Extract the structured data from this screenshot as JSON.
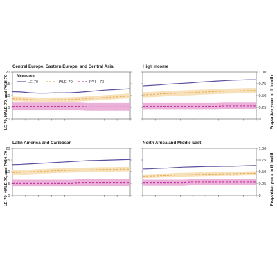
{
  "colors": {
    "le": "#5a4f9e",
    "hale_line": "#e3a84e",
    "hale_band": "#f6dcae",
    "pyih_line": "#b5178e",
    "pyih_band": "#e8a3d2",
    "axis": "#555555"
  },
  "figure": {
    "left_axis_title": "LE-70, HALE-70, and PYIH-70",
    "right_axis_title": "Proportion years in ill health",
    "legend_title": "Measures",
    "legend": [
      {
        "key": "le",
        "label": "LE-70"
      },
      {
        "key": "hale",
        "label": "HALE-70"
      },
      {
        "key": "pyih",
        "label": "PYIH-70"
      }
    ]
  },
  "chart_data": [
    {
      "type": "line",
      "title": "Central Europe, Eastern Europe, and Central Asia",
      "ylim": [
        0,
        20
      ],
      "y_ticks": [
        "0",
        "5",
        "10",
        "15",
        "20"
      ],
      "y2lim": [
        0,
        1
      ],
      "y2_ticks": [
        "0",
        "0.25",
        "0.50",
        "0.75",
        "1.00"
      ],
      "show_left_ticks": true,
      "show_right_ticks": false,
      "x": [
        0,
        1,
        2,
        3,
        4,
        5,
        6,
        7,
        8,
        9,
        10,
        11,
        12,
        13,
        14
      ],
      "series": [
        {
          "name": "LE-70",
          "key": "le",
          "axis": "left",
          "values": [
            11.6,
            11.5,
            11.2,
            11.0,
            11.0,
            11.1,
            11.1,
            11.2,
            11.4,
            11.7,
            12.0,
            12.3,
            12.5,
            12.7,
            12.9
          ]
        },
        {
          "name": "HALE-70",
          "key": "hale",
          "axis": "left",
          "values": [
            8.6,
            8.5,
            8.3,
            8.1,
            8.1,
            8.2,
            8.2,
            8.3,
            8.5,
            8.7,
            8.9,
            9.2,
            9.4,
            9.6,
            9.8
          ],
          "band": 1.0
        },
        {
          "name": "PYIH-70",
          "key": "pyih",
          "axis": "right",
          "values": [
            0.27,
            0.27,
            0.27,
            0.27,
            0.27,
            0.27,
            0.27,
            0.27,
            0.27,
            0.26,
            0.26,
            0.26,
            0.26,
            0.26,
            0.26
          ],
          "band": 0.08
        }
      ]
    },
    {
      "type": "line",
      "title": "High income",
      "ylim": [
        0,
        20
      ],
      "y_ticks": [
        "0",
        "5",
        "10",
        "15",
        "20"
      ],
      "y2lim": [
        0,
        1
      ],
      "y2_ticks": [
        "0",
        "0.25",
        "0.50",
        "0.75",
        "1.00"
      ],
      "show_left_ticks": false,
      "show_right_ticks": true,
      "x": [
        0,
        1,
        2,
        3,
        4,
        5,
        6,
        7,
        8,
        9,
        10,
        11,
        12,
        13,
        14
      ],
      "series": [
        {
          "name": "LE-70",
          "key": "le",
          "axis": "left",
          "values": [
            14.1,
            14.3,
            14.5,
            14.8,
            15.0,
            15.2,
            15.4,
            15.7,
            15.9,
            16.1,
            16.3,
            16.5,
            16.6,
            16.7,
            16.7
          ]
        },
        {
          "name": "HALE-70",
          "key": "hale",
          "axis": "left",
          "values": [
            10.3,
            10.4,
            10.6,
            10.8,
            10.9,
            11.1,
            11.2,
            11.4,
            11.5,
            11.7,
            11.8,
            11.9,
            12.0,
            12.1,
            12.1
          ],
          "band": 1.1
        },
        {
          "name": "PYIH-70",
          "key": "pyih",
          "axis": "right",
          "values": [
            0.27,
            0.27,
            0.27,
            0.27,
            0.27,
            0.27,
            0.27,
            0.27,
            0.27,
            0.27,
            0.28,
            0.28,
            0.28,
            0.28,
            0.28
          ],
          "band": 0.07
        }
      ]
    },
    {
      "type": "line",
      "title": "Latin America and Caribbean",
      "ylim": [
        0,
        20
      ],
      "y_ticks": [
        "0",
        "5",
        "10",
        "15",
        "20"
      ],
      "y2lim": [
        0,
        1
      ],
      "y2_ticks": [
        "0",
        "0.25",
        "0.50",
        "0.75",
        "1.00"
      ],
      "show_left_ticks": true,
      "show_right_ticks": false,
      "x": [
        0,
        1,
        2,
        3,
        4,
        5,
        6,
        7,
        8,
        9,
        10,
        11,
        12,
        13,
        14
      ],
      "series": [
        {
          "name": "LE-70",
          "key": "le",
          "axis": "left",
          "values": [
            13.0,
            13.1,
            13.3,
            13.5,
            13.7,
            13.9,
            14.1,
            14.3,
            14.5,
            14.7,
            14.8,
            14.9,
            15.0,
            15.1,
            15.2
          ]
        },
        {
          "name": "HALE-70",
          "key": "hale",
          "axis": "left",
          "values": [
            9.6,
            9.7,
            9.9,
            10.1,
            10.2,
            10.4,
            10.5,
            10.6,
            10.7,
            10.8,
            10.9,
            11.0,
            11.0,
            11.1,
            11.1
          ],
          "band": 1.0
        },
        {
          "name": "PYIH-70",
          "key": "pyih",
          "axis": "right",
          "values": [
            0.26,
            0.26,
            0.26,
            0.26,
            0.26,
            0.26,
            0.26,
            0.26,
            0.27,
            0.27,
            0.27,
            0.27,
            0.27,
            0.27,
            0.27
          ],
          "band": 0.07
        }
      ]
    },
    {
      "type": "line",
      "title": "North Africa and Middle East",
      "ylim": [
        0,
        20
      ],
      "y_ticks": [
        "0",
        "5",
        "10",
        "15",
        "20"
      ],
      "y2lim": [
        0,
        1
      ],
      "y2_ticks": [
        "0",
        "0.25",
        "0.50",
        "0.75",
        "1.00"
      ],
      "show_left_ticks": false,
      "show_right_ticks": true,
      "x": [
        0,
        1,
        2,
        3,
        4,
        5,
        6,
        7,
        8,
        9,
        10,
        11,
        12,
        13,
        14
      ],
      "series": [
        {
          "name": "LE-70",
          "key": "le",
          "axis": "left",
          "values": [
            11.2,
            11.3,
            11.5,
            11.6,
            11.8,
            12.0,
            12.1,
            12.2,
            12.3,
            12.3,
            12.4,
            12.4,
            12.5,
            12.6,
            12.7
          ]
        },
        {
          "name": "HALE-70",
          "key": "hale",
          "axis": "left",
          "values": [
            8.1,
            8.2,
            8.3,
            8.4,
            8.6,
            8.7,
            8.8,
            8.9,
            9.0,
            9.0,
            9.1,
            9.1,
            9.2,
            9.3,
            9.3
          ],
          "band": 0.8
        },
        {
          "name": "PYIH-70",
          "key": "pyih",
          "axis": "right",
          "values": [
            0.27,
            0.27,
            0.27,
            0.27,
            0.27,
            0.27,
            0.28,
            0.28,
            0.28,
            0.28,
            0.28,
            0.28,
            0.28,
            0.28,
            0.28
          ],
          "band": 0.06
        }
      ]
    }
  ]
}
